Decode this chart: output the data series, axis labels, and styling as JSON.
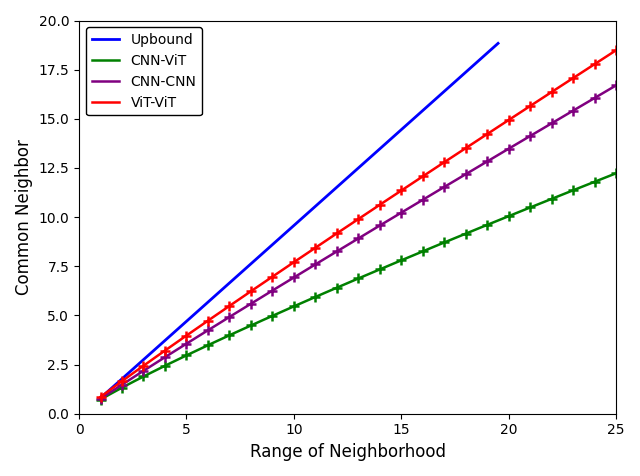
{
  "title": "",
  "xlabel": "Range of Neighborhood",
  "ylabel": "Common Neighbor",
  "xlim": [
    0,
    25
  ],
  "ylim": [
    0.0,
    20.0
  ],
  "upbound": {
    "label": "Upbound",
    "color": "#0000ff",
    "x_start": 1.0,
    "x_end": 19.5,
    "slope": 0.975,
    "intercept": -0.175
  },
  "series": [
    {
      "label": "CNN-ViT",
      "color": "#008000",
      "alpha_power": 0.88,
      "scale": 0.72
    },
    {
      "label": "CNN-CNN",
      "color": "#800080",
      "alpha_power": 0.96,
      "scale": 0.76
    },
    {
      "label": "ViT-ViT",
      "color": "#ff0000",
      "alpha_power": 0.955,
      "scale": 0.855
    }
  ],
  "x_ticks": [
    0,
    5,
    10,
    15,
    20,
    25
  ],
  "y_ticks": [
    0.0,
    2.5,
    5.0,
    7.5,
    10.0,
    12.5,
    15.0,
    17.5,
    20.0
  ],
  "figsize": [
    6.4,
    4.76
  ],
  "dpi": 100
}
